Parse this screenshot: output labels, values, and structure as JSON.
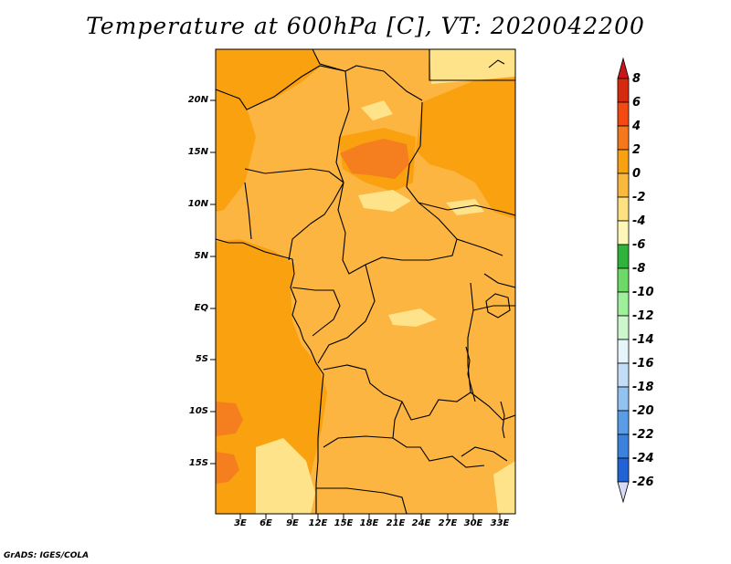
{
  "title": "Temperature at 600hPa [C], VT: 2020042200",
  "credit": "GrADS: IGES/COLA",
  "map": {
    "lat_labels": [
      "20N",
      "15N",
      "10N",
      "5N",
      "EQ",
      "5S",
      "10S",
      "15S"
    ],
    "lon_labels": [
      "3E",
      "6E",
      "9E",
      "12E",
      "15E",
      "18E",
      "21E",
      "24E",
      "27E",
      "30E",
      "33E"
    ],
    "fill_colors": {
      "light_yellow": "#fee38a",
      "orange_light": "#fbb540",
      "orange": "#f9a10e",
      "orange_dark": "#f57e1e",
      "red_orange": "#f05a18"
    }
  },
  "colorbar": {
    "labels": [
      "8",
      "6",
      "4",
      "2",
      "0",
      "-2",
      "-4",
      "-6",
      "-8",
      "-10",
      "-12",
      "-14",
      "-16",
      "-18",
      "-20",
      "-22",
      "-24",
      "-26"
    ],
    "colors": [
      "#d62a0e",
      "#f34a13",
      "#f5791c",
      "#f8a112",
      "#fbb83e",
      "#fde07f",
      "#fdf8b8",
      "#2fb33b",
      "#6dd966",
      "#9ff09b",
      "#cdf6cd",
      "#e6f5f9",
      "#c4ddf6",
      "#92c2f0",
      "#5a9de6",
      "#3b82de",
      "#2163d4",
      "#1344b8",
      "#0c2688",
      "#0a1560"
    ],
    "end_colors": {
      "top": "#c8161b",
      "bottom": "#d6dcf7"
    }
  }
}
